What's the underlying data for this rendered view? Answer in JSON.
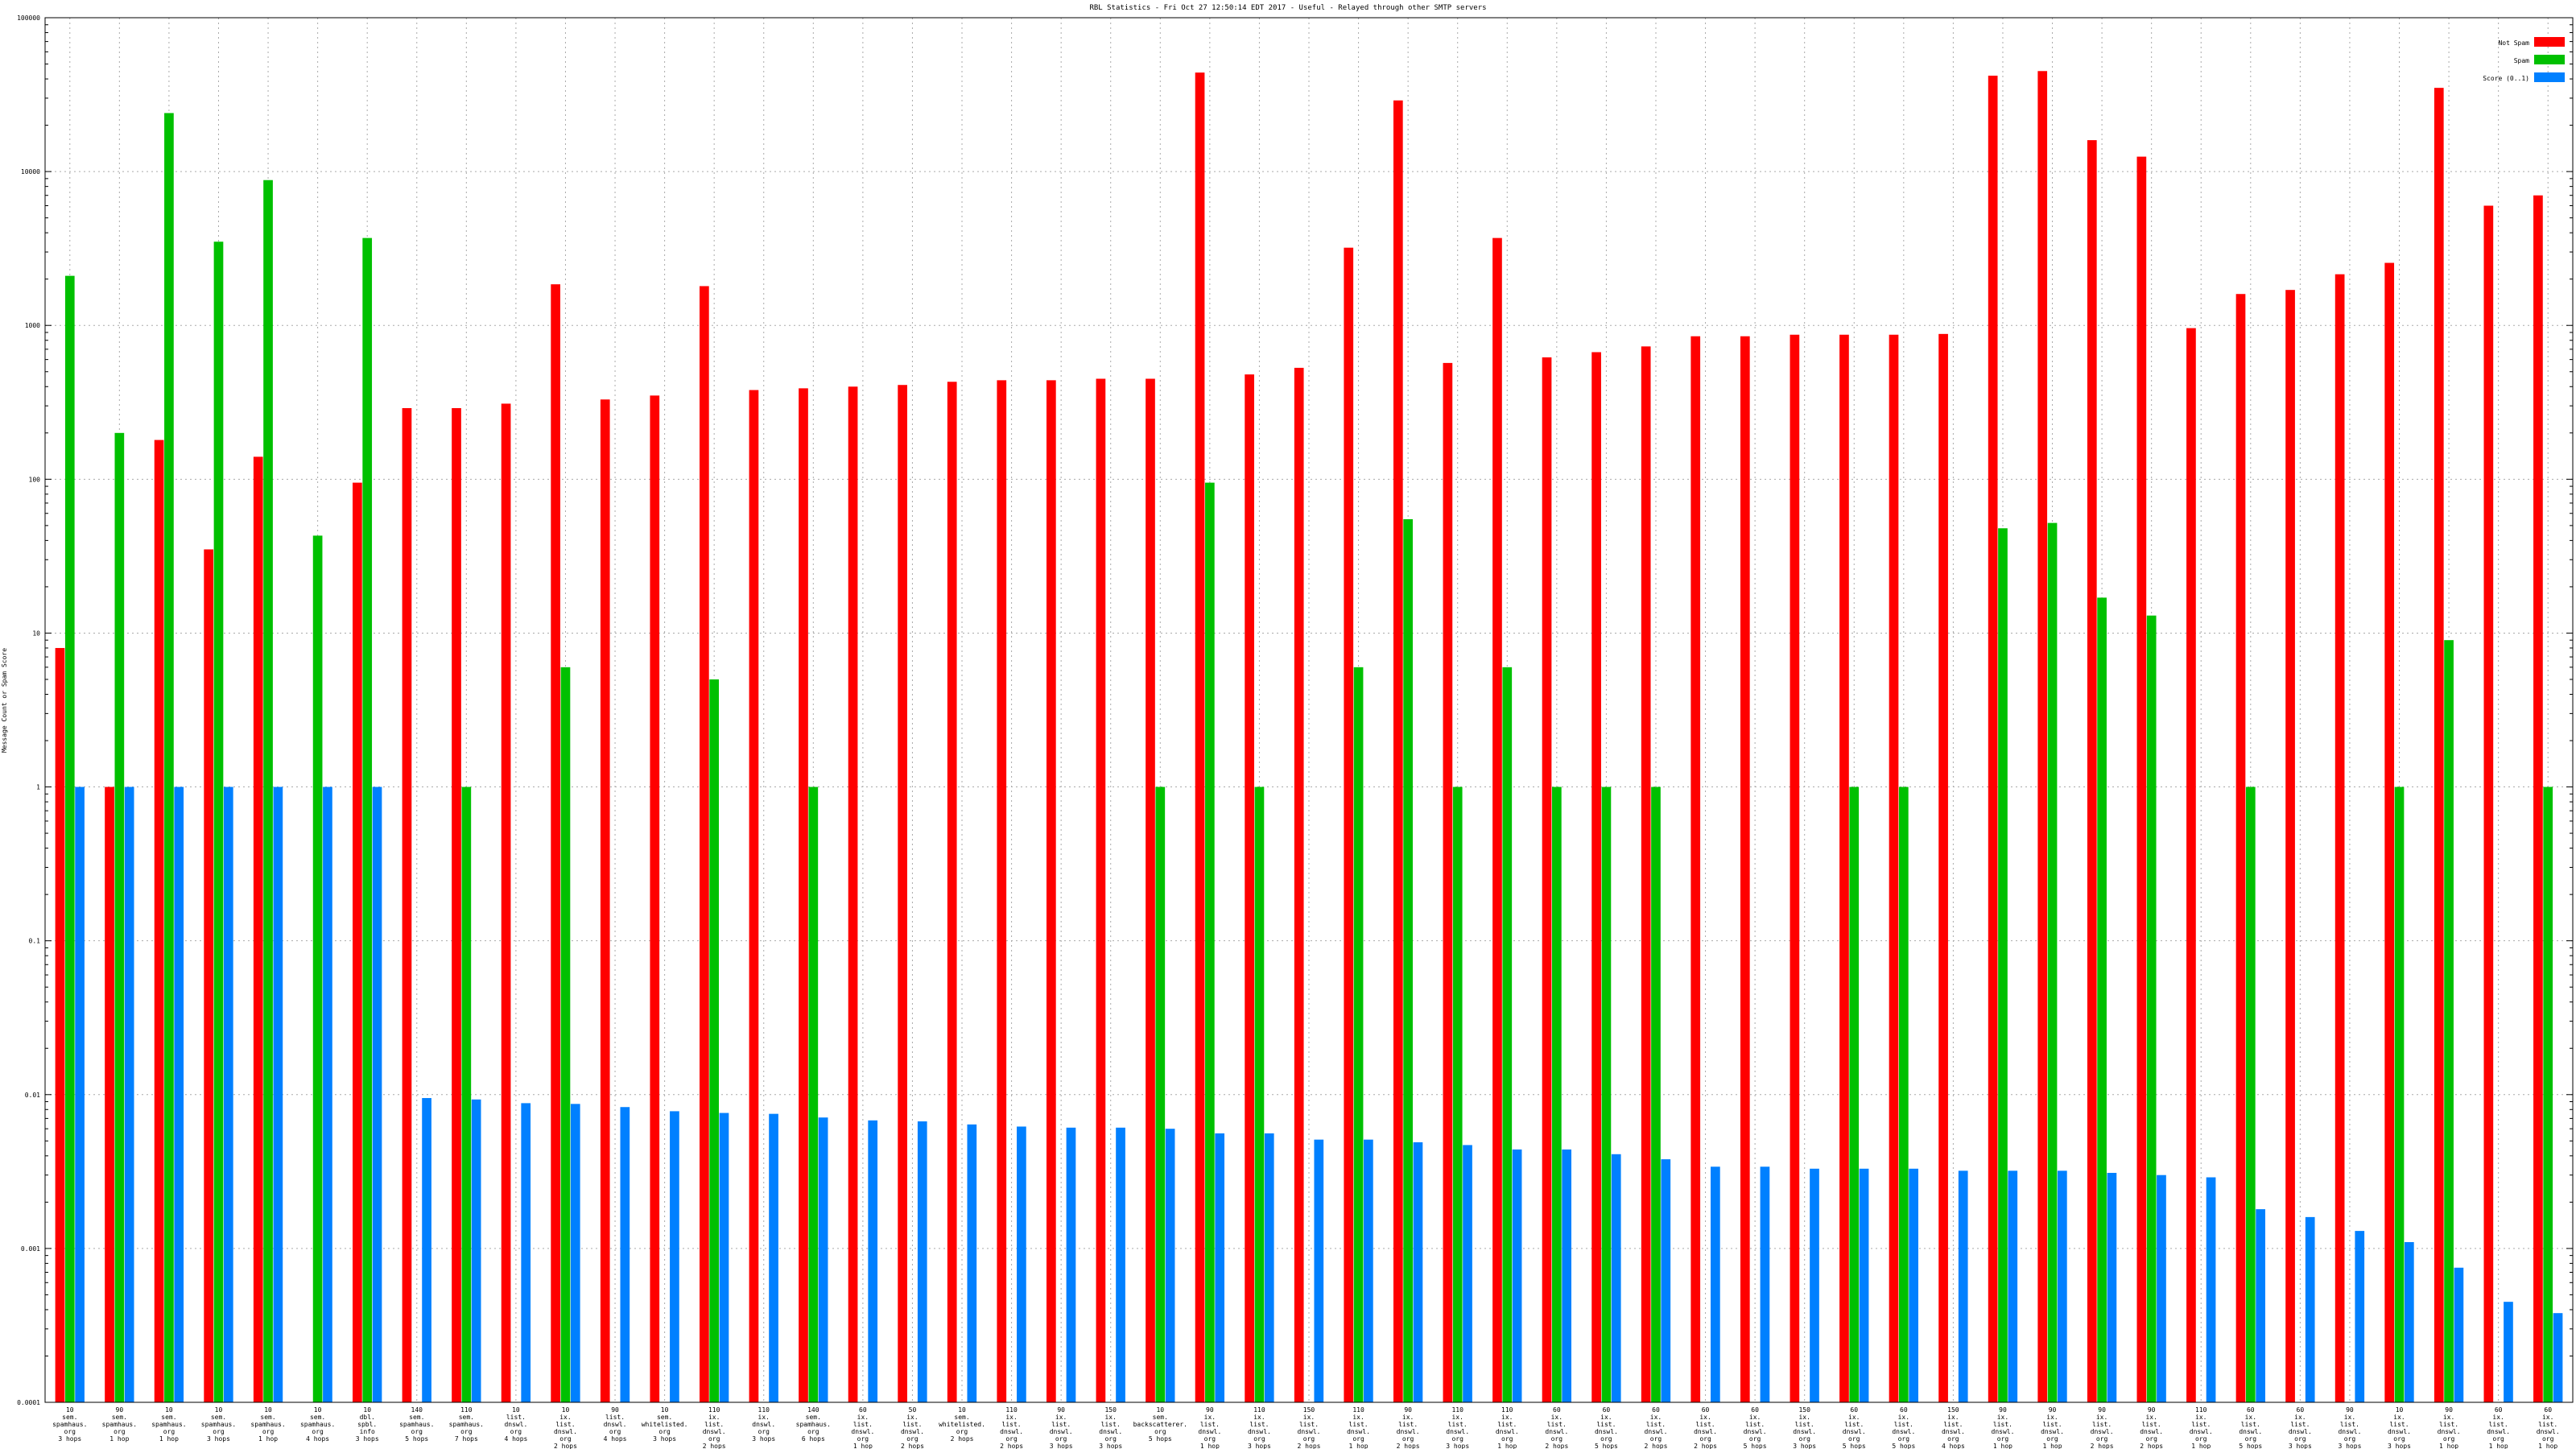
{
  "chart_data": {
    "type": "bar",
    "title": "RBL Statistics - Fri Oct 27 12:50:14 EDT 2017 - Useful - Relayed through other SMTP servers",
    "xlabel": "",
    "ylabel": "Message Count or Spam Score",
    "y_scale": "log",
    "ylim": [
      0.0001,
      100000
    ],
    "y_ticks": [
      "0.0001",
      "0.001",
      "0.01",
      "0.1",
      "1",
      "10",
      "100",
      "1000",
      "10000",
      "100000"
    ],
    "grid": true,
    "legend_position": "top-right",
    "categories": [
      [
        "10",
        "sem.",
        "spamhaus.",
        "org",
        "3 hops"
      ],
      [
        "90",
        "sem.",
        "spamhaus.",
        "org",
        "1 hop"
      ],
      [
        "10",
        "sem.",
        "spamhaus.",
        "org",
        "1 hop"
      ],
      [
        "10",
        "sem.",
        "spamhaus.",
        "org",
        "3 hops"
      ],
      [
        "10",
        "sem.",
        "spamhaus.",
        "org",
        "1 hop"
      ],
      [
        "10",
        "sem.",
        "spamhaus.",
        "org",
        "4 hops"
      ],
      [
        "10",
        "dbl.",
        "spbl.",
        "info",
        "3 hops"
      ],
      [
        "140",
        "sem.",
        "spamhaus.",
        "org",
        "5 hops"
      ],
      [
        "110",
        "sem.",
        "spamhaus.",
        "org",
        "7 hops"
      ],
      [
        "10",
        "list.",
        "dnswl.",
        "org",
        "4 hops"
      ],
      [
        "10",
        "ix.",
        "list.",
        "dnswl.",
        "org",
        "2 hops"
      ],
      [
        "90",
        "list.",
        "dnswl.",
        "org",
        "4 hops"
      ],
      [
        "10",
        "sem.",
        "whitelisted.",
        "org",
        "3 hops"
      ],
      [
        "110",
        "ix.",
        "list.",
        "dnswl.",
        "org",
        "2 hops"
      ],
      [
        "110",
        "ix.",
        "dnswl.",
        "org",
        "3 hops"
      ],
      [
        "140",
        "sem.",
        "spamhaus.",
        "org",
        "6 hops"
      ],
      [
        "60",
        "ix.",
        "list.",
        "dnswl.",
        "org",
        "1 hop"
      ],
      [
        "50",
        "ix.",
        "list.",
        "dnswl.",
        "org",
        "2 hops"
      ],
      [
        "10",
        "sem.",
        "whitelisted.",
        "org",
        "2 hops"
      ],
      [
        "110",
        "ix.",
        "list.",
        "dnswl.",
        "org",
        "2 hops"
      ],
      [
        "90",
        "ix.",
        "list.",
        "dnswl.",
        "org",
        "3 hops"
      ],
      [
        "150",
        "ix.",
        "list.",
        "dnswl.",
        "org",
        "3 hops"
      ],
      [
        "10",
        "sem.",
        "backscatterer.",
        "org",
        "5 hops"
      ],
      [
        "90",
        "ix.",
        "list.",
        "dnswl.",
        "org",
        "1 hop"
      ],
      [
        "110",
        "ix.",
        "list.",
        "dnswl.",
        "org",
        "3 hops"
      ],
      [
        "150",
        "ix.",
        "list.",
        "dnswl.",
        "org",
        "2 hops"
      ],
      [
        "110",
        "ix.",
        "list.",
        "dnswl.",
        "org",
        "1 hop"
      ],
      [
        "90",
        "ix.",
        "list.",
        "dnswl.",
        "org",
        "2 hops"
      ],
      [
        "110",
        "ix.",
        "list.",
        "dnswl.",
        "org",
        "3 hops"
      ],
      [
        "110",
        "ix.",
        "list.",
        "dnswl.",
        "org",
        "1 hop"
      ],
      [
        "60",
        "ix.",
        "list.",
        "dnswl.",
        "org",
        "2 hops"
      ],
      [
        "60",
        "ix.",
        "list.",
        "dnswl.",
        "org",
        "5 hops"
      ],
      [
        "60",
        "ix.",
        "list.",
        "dnswl.",
        "org",
        "2 hops"
      ],
      [
        "60",
        "ix.",
        "list.",
        "dnswl.",
        "org",
        "2 hops"
      ],
      [
        "60",
        "ix.",
        "list.",
        "dnswl.",
        "org",
        "5 hops"
      ],
      [
        "150",
        "ix.",
        "list.",
        "dnswl.",
        "org",
        "3 hops"
      ],
      [
        "60",
        "ix.",
        "list.",
        "dnswl.",
        "org",
        "5 hops"
      ],
      [
        "60",
        "ix.",
        "list.",
        "dnswl.",
        "org",
        "5 hops"
      ],
      [
        "150",
        "ix.",
        "list.",
        "dnswl.",
        "org",
        "4 hops"
      ],
      [
        "90",
        "ix.",
        "list.",
        "dnswl.",
        "org",
        "1 hop"
      ],
      [
        "90",
        "ix.",
        "list.",
        "dnswl.",
        "org",
        "1 hop"
      ],
      [
        "90",
        "ix.",
        "list.",
        "dnswl.",
        "org",
        "2 hops"
      ],
      [
        "90",
        "ix.",
        "list.",
        "dnswl.",
        "org",
        "2 hops"
      ],
      [
        "110",
        "ix.",
        "list.",
        "dnswl.",
        "org",
        "1 hop"
      ],
      [
        "60",
        "ix.",
        "list.",
        "dnswl.",
        "org",
        "5 hops"
      ],
      [
        "60",
        "ix.",
        "list.",
        "dnswl.",
        "org",
        "3 hops"
      ],
      [
        "90",
        "ix.",
        "list.",
        "dnswl.",
        "org",
        "3 hops"
      ],
      [
        "10",
        "ix.",
        "list.",
        "dnswl.",
        "org",
        "3 hops"
      ],
      [
        "90",
        "ix.",
        "list.",
        "dnswl.",
        "org",
        "1 hop"
      ],
      [
        "60",
        "ix.",
        "list.",
        "dnswl.",
        "org",
        "1 hop"
      ],
      [
        "60",
        "ix.",
        "list.",
        "dnswl.",
        "org",
        "1 hop"
      ]
    ],
    "series": [
      {
        "name": "Not Spam",
        "color": "#ff0000",
        "values": [
          8,
          1,
          180,
          35,
          140,
          null,
          95,
          290,
          290,
          310,
          1850,
          330,
          350,
          1800,
          380,
          390,
          400,
          410,
          430,
          440,
          440,
          450,
          450,
          44000,
          480,
          530,
          3200,
          29000,
          570,
          3700,
          620,
          670,
          730,
          850,
          850,
          870,
          870,
          870,
          880,
          42000,
          45000,
          16000,
          12500,
          960,
          1600,
          1700,
          2150,
          2550,
          35000,
          6000,
          7000
        ]
      },
      {
        "name": "Spam",
        "color": "#00c000",
        "values": [
          2100,
          200,
          24000,
          3500,
          8800,
          43,
          3700,
          null,
          1,
          null,
          6,
          null,
          null,
          5,
          null,
          1,
          null,
          null,
          null,
          null,
          null,
          null,
          1,
          95,
          1,
          null,
          6,
          55,
          1,
          6,
          1,
          1,
          1,
          null,
          null,
          null,
          1,
          1,
          null,
          48,
          52,
          17,
          13,
          null,
          1,
          null,
          null,
          1,
          9,
          null,
          1
        ]
      },
      {
        "name": "Score (0..1)",
        "color": "#0080ff",
        "values": [
          1,
          1,
          1,
          1,
          1,
          1,
          1,
          0.0095,
          0.0093,
          0.0088,
          0.0087,
          0.0083,
          0.0078,
          0.0076,
          0.0075,
          0.0071,
          0.0068,
          0.0067,
          0.0064,
          0.0062,
          0.0061,
          0.0061,
          0.006,
          0.0056,
          0.0056,
          0.0051,
          0.0051,
          0.0049,
          0.0047,
          0.0044,
          0.0044,
          0.0041,
          0.0038,
          0.0034,
          0.0034,
          0.0033,
          0.0033,
          0.0033,
          0.0032,
          0.0032,
          0.0032,
          0.0031,
          0.003,
          0.0029,
          0.0018,
          0.0016,
          0.0013,
          0.0011,
          0.00075,
          0.00045,
          0.00038
        ]
      }
    ]
  }
}
